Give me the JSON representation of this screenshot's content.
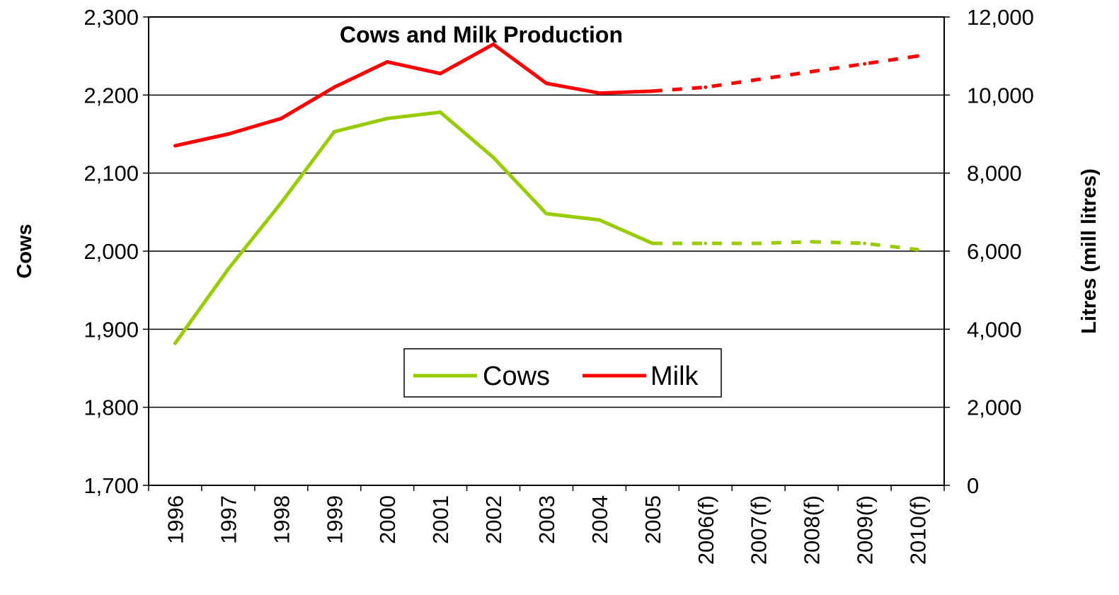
{
  "chart_data": {
    "type": "line",
    "title": "Cows and Milk Production",
    "categories": [
      "1996",
      "1997",
      "1998",
      "1999",
      "2000",
      "2001",
      "2002",
      "2003",
      "2004",
      "2005",
      "2006(f)",
      "2007(f)",
      "2008(f)",
      "2009(f)",
      "2010(f)"
    ],
    "forecast_start_index": 9,
    "y_left": {
      "label": "Cows",
      "lim": [
        1700,
        2300
      ],
      "ticks": [
        1700,
        1800,
        1900,
        2000,
        2100,
        2200,
        2300
      ],
      "tick_labels": [
        "1,700",
        "1,800",
        "1,900",
        "2,000",
        "2,100",
        "2,200",
        "2,300"
      ]
    },
    "y_right": {
      "label": "Litres (mill litres)",
      "lim": [
        0,
        12000
      ],
      "ticks": [
        0,
        2000,
        4000,
        6000,
        8000,
        10000,
        12000
      ],
      "tick_labels": [
        "0",
        "2,000",
        "4,000",
        "6,000",
        "8,000",
        "10,000",
        "12,000"
      ]
    },
    "grid": true,
    "legend": "center",
    "series": [
      {
        "name": "Cows",
        "axis": "left",
        "color": "#99cc00",
        "values": [
          1882,
          1977,
          2062,
          2153,
          2170,
          2178,
          2120,
          2048,
          2040,
          2010,
          2010,
          2010,
          2012,
          2010,
          2002
        ]
      },
      {
        "name": "Milk",
        "axis": "right",
        "color": "#ff0000",
        "values": [
          8700,
          9000,
          9400,
          10200,
          10850,
          10550,
          11300,
          10300,
          10050,
          10100,
          10200,
          10400,
          10600,
          10800,
          11000
        ]
      }
    ]
  }
}
